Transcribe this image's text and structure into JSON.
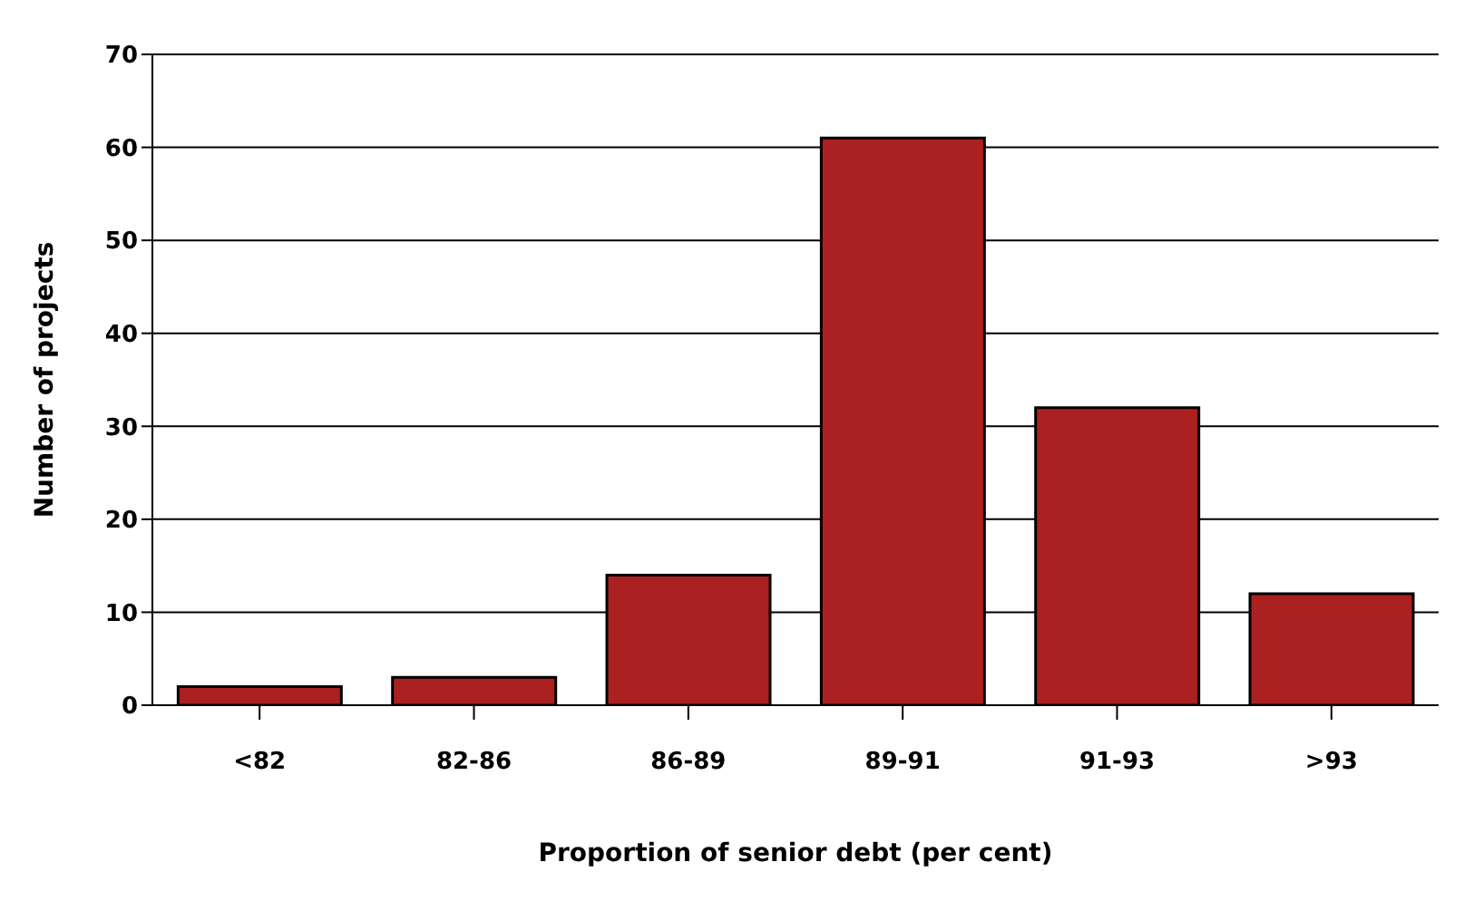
{
  "chart_data": {
    "type": "bar",
    "xlabel": "Proportion of senior debt (per cent)",
    "ylabel": "Number of projects",
    "categories": [
      "<82",
      "82-86",
      "86-89",
      "89-91",
      "91-93",
      ">93"
    ],
    "values": [
      2,
      3,
      14,
      61,
      32,
      12
    ],
    "color": "#ab2020",
    "ylim": [
      0,
      70
    ],
    "yticks": [
      0,
      10,
      20,
      30,
      40,
      50,
      60,
      70
    ],
    "grid": "y"
  }
}
